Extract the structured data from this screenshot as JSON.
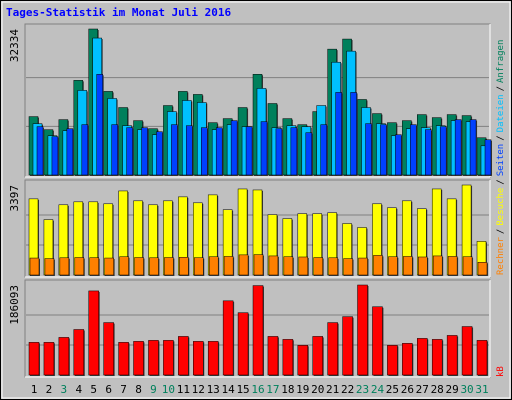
{
  "title": "Tages-Statistik im Monat Juli 2016",
  "legend_separator": "/",
  "chart_data": [
    {
      "type": "bar",
      "ylim": [
        0,
        32334
      ],
      "yticks": [
        32334
      ],
      "series": [
        {
          "name": "Anfragen",
          "color": "#00805c",
          "values": [
            12934,
            10035,
            12265,
            20962,
            32334,
            18509,
            14941,
            12042,
            10258,
            15387,
            18509,
            17840,
            11596,
            12488,
            14941,
            22300,
            15833,
            12488,
            11150,
            14049,
            27875,
            30105,
            16725,
            13603,
            11596,
            12042,
            13380,
            12711,
            13380,
            13157,
            8251
          ]
        },
        {
          "name": "Dateien",
          "color": "#00c0ff",
          "values": [
            11373,
            8697,
            9812,
            18732,
            30328,
            16948,
            10927,
            10035,
            8920,
            14049,
            16502,
            16056,
            10035,
            11150,
            10704,
            19178,
            10481,
            10927,
            10704,
            15387,
            24976,
            27429,
            14941,
            11373,
            8697,
            10258,
            10481,
            10927,
            12042,
            11819,
            6467
          ]
        },
        {
          "name": "Seiten",
          "color": "#0040ff",
          "values": [
            10704,
            8474,
            10258,
            11150,
            22300,
            11150,
            10481,
            10481,
            9589,
            11150,
            10927,
            10481,
            10481,
            12042,
            10704,
            11819,
            10258,
            10481,
            9366,
            11150,
            18286,
            18286,
            11373,
            11150,
            8920,
            11150,
            10035,
            10704,
            12265,
            12265,
            7805
          ]
        }
      ]
    },
    {
      "type": "bar",
      "ylim": [
        0,
        3397
      ],
      "yticks": [
        3397
      ],
      "series": [
        {
          "name": "Besuche",
          "color": "#ffff00",
          "values": [
            2874,
            2090,
            2650,
            2762,
            2762,
            2688,
            3173,
            2800,
            2650,
            2800,
            2949,
            2725,
            3024,
            2464,
            3248,
            3210,
            2277,
            2128,
            2314,
            2314,
            2352,
            1941,
            1792,
            2688,
            2538,
            2800,
            2501,
            3248,
            2874,
            3397,
            1269
          ]
        },
        {
          "name": "Rechner",
          "color": "#ff8000",
          "values": [
            640,
            620,
            650,
            660,
            655,
            640,
            690,
            660,
            650,
            660,
            670,
            655,
            690,
            700,
            760,
            770,
            720,
            690,
            680,
            660,
            650,
            620,
            640,
            740,
            690,
            700,
            680,
            720,
            700,
            690,
            480
          ]
        }
      ]
    },
    {
      "type": "bar",
      "ylim": [
        0,
        186093
      ],
      "yticks": [
        186093
      ],
      "categories": [
        "1",
        "2",
        "3",
        "4",
        "5",
        "6",
        "7",
        "8",
        "9",
        "10",
        "11",
        "12",
        "13",
        "14",
        "15",
        "16",
        "17",
        "18",
        "19",
        "20",
        "21",
        "22",
        "23",
        "24",
        "25",
        "26",
        "27",
        "28",
        "29",
        "30",
        "31"
      ],
      "category_colors": [
        "#000000",
        "#000000",
        "#00805c",
        "#000000",
        "#000000",
        "#000000",
        "#000000",
        "#000000",
        "#00805c",
        "#00805c",
        "#000000",
        "#000000",
        "#000000",
        "#000000",
        "#000000",
        "#00805c",
        "#00805c",
        "#000000",
        "#000000",
        "#000000",
        "#000000",
        "#000000",
        "#00805c",
        "#00805c",
        "#000000",
        "#000000",
        "#000000",
        "#000000",
        "#000000",
        "#00805c",
        "#00805c"
      ],
      "series": [
        {
          "name": "kB",
          "color": "#ff0000",
          "values": [
            67485,
            67485,
            77710,
            94070,
            173825,
            108385,
            67485,
            69530,
            71575,
            71575,
            79755,
            69530,
            69530,
            153375,
            128835,
            184900,
            79755,
            73620,
            61350,
            79755,
            108385,
            120655,
            186093,
            141105,
            61350,
            65440,
            75665,
            73620,
            81800,
            100205,
            71575
          ]
        }
      ]
    }
  ]
}
